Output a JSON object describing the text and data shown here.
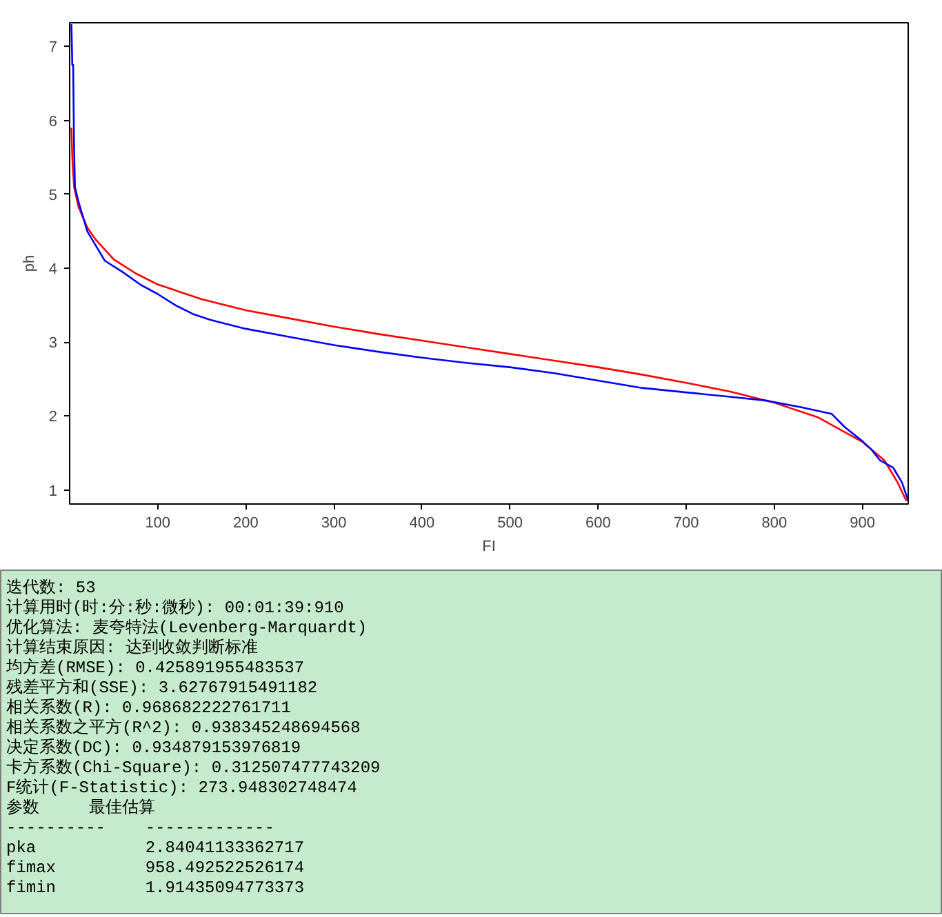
{
  "chart_data": {
    "type": "line",
    "xlabel": "FI",
    "ylabel": "ph",
    "xlim": [
      0,
      952
    ],
    "ylim": [
      0.81,
      7.32
    ],
    "xticks": [
      100,
      200,
      300,
      400,
      500,
      600,
      700,
      800,
      900
    ],
    "yticks": [
      1,
      2,
      3,
      4,
      5,
      6,
      7
    ],
    "grid": false,
    "line_style": "solid",
    "marker": "none",
    "series": [
      {
        "color": "#ff0000",
        "x": [
          2,
          3,
          5,
          10,
          20,
          30,
          50,
          75,
          100,
          150,
          200,
          250,
          300,
          350,
          400,
          450,
          500,
          550,
          600,
          650,
          700,
          750,
          800,
          850,
          900,
          925,
          940,
          950
        ],
        "values": [
          5.9,
          5.5,
          5.1,
          4.83,
          4.55,
          4.38,
          4.12,
          3.93,
          3.78,
          3.58,
          3.43,
          3.32,
          3.21,
          3.11,
          3.02,
          2.93,
          2.84,
          2.75,
          2.66,
          2.56,
          2.45,
          2.33,
          2.18,
          1.98,
          1.65,
          1.4,
          1.1,
          0.85
        ]
      },
      {
        "color": "#0000ff",
        "x": [
          2,
          3,
          4,
          5,
          6,
          10,
          20,
          30,
          40,
          60,
          80,
          100,
          120,
          140,
          160,
          200,
          250,
          300,
          350,
          400,
          450,
          500,
          550,
          600,
          650,
          700,
          750,
          790,
          830,
          865,
          880,
          900,
          910,
          920,
          935,
          945,
          952
        ],
        "values": [
          7.3,
          6.75,
          6.75,
          5.65,
          5.1,
          4.9,
          4.5,
          4.3,
          4.1,
          3.95,
          3.78,
          3.65,
          3.5,
          3.38,
          3.3,
          3.18,
          3.07,
          2.96,
          2.87,
          2.79,
          2.72,
          2.66,
          2.58,
          2.48,
          2.38,
          2.32,
          2.26,
          2.21,
          2.12,
          2.03,
          1.85,
          1.66,
          1.55,
          1.4,
          1.3,
          1.1,
          0.85
        ]
      }
    ],
    "annotations": [
      "迭代数: 53",
      "计算用时(时:分:秒:微秒): 00:01:39:910",
      "优化算法: 麦夸特法(Levenberg-Marquardt)",
      "计算结束原因: 达到收敛判断标准",
      "均方差(RMSE): 0.425891955483537",
      "残差平方和(SSE): 3.62767915491182",
      "相关系数(R): 0.968682222761711",
      "相关系数之平方(R^2): 0.938345248694568",
      "决定系数(DC): 0.934879153976819",
      "卡方系数(Chi-Square): 0.312507477743209",
      "F统计(F-Statistic): 273.948302748474",
      "参数     最佳估算",
      "----------    -------------",
      "pka           2.84041133362717",
      "fimax         958.492522526174",
      "fimin         1.91435094773373"
    ]
  }
}
